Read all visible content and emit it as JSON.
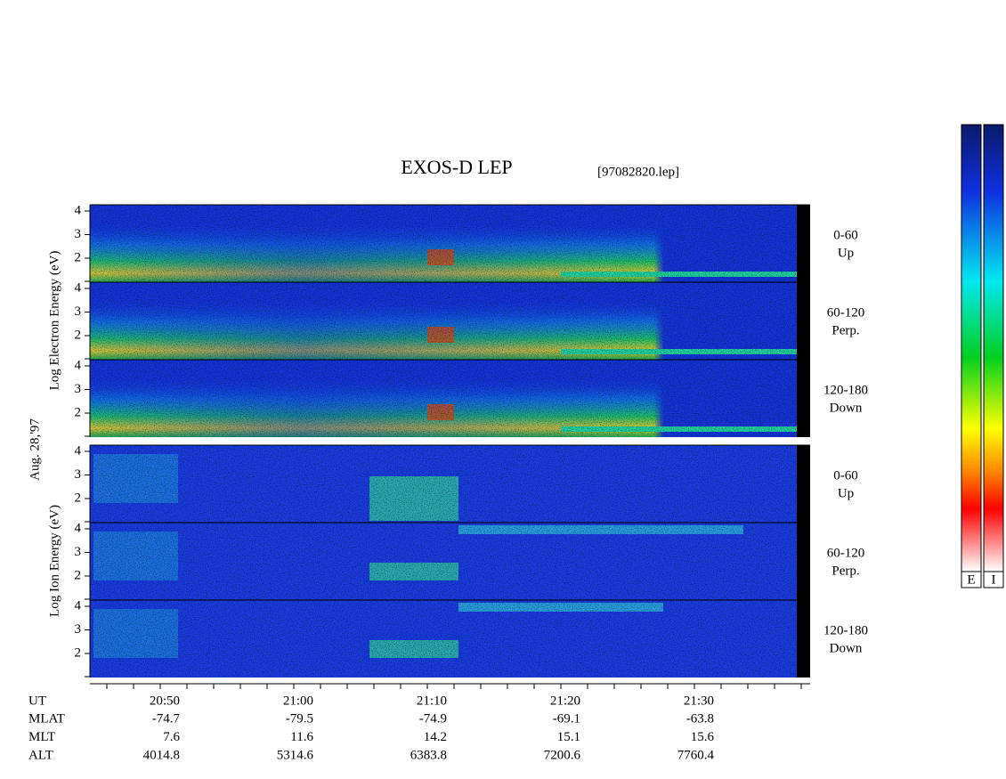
{
  "header": {
    "title": "EXOS-D LEP",
    "file": "[97082820.lep]"
  },
  "electron": {
    "axis_label": "Log Electron Energy (eV)",
    "panels": [
      {
        "ticks": [
          2,
          3,
          4
        ],
        "label": [
          "0-60",
          "Up"
        ]
      },
      {
        "ticks": [
          2,
          3,
          4
        ],
        "label": [
          "60-120",
          "Perp."
        ]
      },
      {
        "ticks": [
          2,
          3,
          4
        ],
        "label": [
          "120-180",
          "Down"
        ]
      }
    ]
  },
  "date": "Aug. 28,'97",
  "ion": {
    "axis_label": "Log Ion Energy (eV)",
    "panels": [
      {
        "ticks": [
          2,
          3,
          4
        ],
        "label": [
          "0-60",
          "Up"
        ]
      },
      {
        "ticks": [
          2,
          3,
          4
        ],
        "label": [
          "60-120",
          "Perp."
        ]
      },
      {
        "ticks": [
          2,
          3,
          4
        ],
        "label": [
          "120-180",
          "Down"
        ]
      }
    ]
  },
  "time_axis": {
    "rows": [
      {
        "name": "UT",
        "values": [
          "20:50",
          "21:00",
          "21:10",
          "21:20",
          "21:30"
        ]
      },
      {
        "name": "MLAT",
        "values": [
          -74.7,
          -79.5,
          -74.9,
          -69.1,
          -63.8
        ]
      },
      {
        "name": "MLT",
        "values": [
          7.6,
          11.6,
          14.2,
          15.1,
          15.6
        ]
      },
      {
        "name": "ALT",
        "values": [
          4014.8,
          5314.6,
          6383.8,
          7200.6,
          7760.4
        ]
      }
    ]
  },
  "colorbars": [
    "E",
    "I"
  ]
}
